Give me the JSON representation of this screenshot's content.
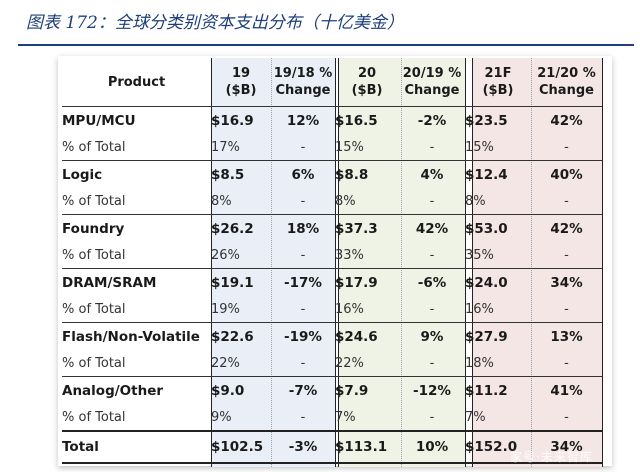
{
  "figure": {
    "title": "图表 172：全球分类别资本支出分布（十亿美金）"
  },
  "table": {
    "headers": {
      "product": "Product",
      "y19": [
        "19",
        "($B)"
      ],
      "c19": [
        "19/18 %",
        "Change"
      ],
      "y20": [
        "20",
        "($B)"
      ],
      "c20": [
        "20/19 %",
        "Change"
      ],
      "y21": [
        "21F",
        "($B)"
      ],
      "c21": [
        "21/20 %",
        "Change"
      ]
    },
    "rows": [
      {
        "label": "MPU/MCU",
        "v19": "$16.9",
        "c19": "12%",
        "v20": "$16.5",
        "c20": "-2%",
        "v21": "$23.5",
        "c21": "42%",
        "share_label": "% of Total",
        "s19": "17%",
        "sc19": "-",
        "s20": "15%",
        "sc20": "-",
        "s21": "15%",
        "sc21": "-"
      },
      {
        "label": "Logic",
        "v19": "$8.5",
        "c19": "6%",
        "v20": "$8.8",
        "c20": "4%",
        "v21": "$12.4",
        "c21": "40%",
        "share_label": "% of Total",
        "s19": "8%",
        "sc19": "-",
        "s20": "8%",
        "sc20": "-",
        "s21": "8%",
        "sc21": "-"
      },
      {
        "label": "Foundry",
        "v19": "$26.2",
        "c19": "18%",
        "v20": "$37.3",
        "c20": "42%",
        "v21": "$53.0",
        "c21": "42%",
        "share_label": "% of Total",
        "s19": "26%",
        "sc19": "-",
        "s20": "33%",
        "sc20": "-",
        "s21": "35%",
        "sc21": "-"
      },
      {
        "label": "DRAM/SRAM",
        "v19": "$19.1",
        "c19": "-17%",
        "v20": "$17.9",
        "c20": "-6%",
        "v21": "$24.0",
        "c21": "34%",
        "share_label": "% of Total",
        "s19": "19%",
        "sc19": "-",
        "s20": "16%",
        "sc20": "-",
        "s21": "16%",
        "sc21": "-"
      },
      {
        "label": "Flash/Non-Volatile",
        "v19": "$22.6",
        "c19": "-19%",
        "v20": "$24.6",
        "c20": "9%",
        "v21": "$27.9",
        "c21": "13%",
        "share_label": "% of Total",
        "s19": "22%",
        "sc19": "-",
        "s20": "22%",
        "sc20": "-",
        "s21": "18%",
        "sc21": "-"
      },
      {
        "label": "Analog/Other",
        "v19": "$9.0",
        "c19": "-7%",
        "v20": "$7.9",
        "c20": "-12%",
        "v21": "$11.2",
        "c21": "41%",
        "share_label": "% of Total",
        "s19": "9%",
        "sc19": "-",
        "s20": "7%",
        "sc20": "-",
        "s21": "7%",
        "sc21": "-"
      }
    ],
    "total": {
      "label": "Total",
      "v19": "$102.5",
      "c19": "-3%",
      "v20": "$113.1",
      "c20": "10%",
      "v21": "$152.0",
      "c21": "34%"
    }
  },
  "watermark": "家号·未来智库",
  "colors": {
    "title": "#1f3f7a",
    "band19": "#e9eef7",
    "band20": "#eff3e6",
    "band21": "#f5e6e6"
  }
}
